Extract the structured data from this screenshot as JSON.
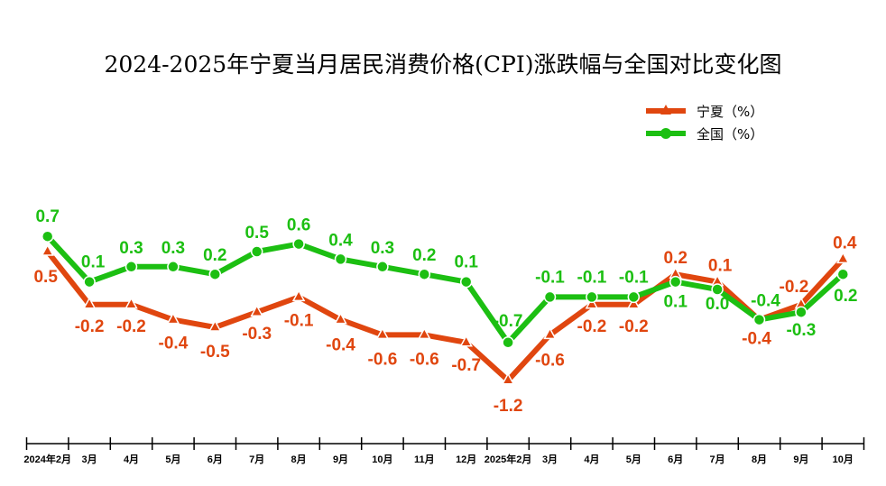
{
  "chart_data": {
    "type": "line",
    "title": "2024-2025年宁夏当月居民消费价格(CPI)涨跌幅与全国对比变化图",
    "categories": [
      "2024年2月",
      "3月",
      "4月",
      "5月",
      "6月",
      "7月",
      "8月",
      "9月",
      "10月",
      "11月",
      "12月",
      "2025年2月",
      "3月",
      "4月",
      "5月",
      "6月",
      "7月",
      "8月",
      "9月",
      "10月"
    ],
    "series": [
      {
        "name": "宁夏（%）",
        "color": "#e0460f",
        "marker": "triangle",
        "values": [
          0.5,
          -0.2,
          -0.2,
          -0.4,
          -0.5,
          -0.3,
          -0.1,
          -0.4,
          -0.6,
          -0.6,
          -0.7,
          -1.2,
          -0.6,
          -0.2,
          -0.2,
          0.2,
          0.1,
          -0.4,
          -0.2,
          0.4
        ],
        "labels": [
          "0.5",
          "-0.2",
          "-0.2",
          "-0.4",
          "-0.5",
          "-0.3",
          "-0.1",
          "-0.4",
          "-0.6",
          "-0.6",
          "-0.7",
          "-1.2",
          "-0.6",
          "-0.2",
          "-0.2",
          "0.2",
          "0.1",
          "-0.4",
          "-0.2",
          "0.4"
        ]
      },
      {
        "name": "全国（%）",
        "color": "#1cbf12",
        "marker": "circle",
        "values": [
          0.7,
          0.1,
          0.3,
          0.3,
          0.2,
          0.5,
          0.6,
          0.4,
          0.3,
          0.2,
          0.1,
          -0.7,
          -0.1,
          -0.1,
          -0.1,
          0.1,
          0.0,
          -0.4,
          -0.3,
          0.2
        ],
        "labels": [
          "0.7",
          "0.1",
          "0.3",
          "0.3",
          "0.2",
          "0.5",
          "0.6",
          "0.4",
          "0.3",
          "0.2",
          "0.1",
          "-0.7",
          "-0.1",
          "-0.1",
          "-0.1",
          "0.1",
          "0.0",
          "-0.4",
          "-0.3",
          "0.2"
        ]
      }
    ],
    "legend": "top-right",
    "grid": false,
    "y_axis_visible": false
  }
}
